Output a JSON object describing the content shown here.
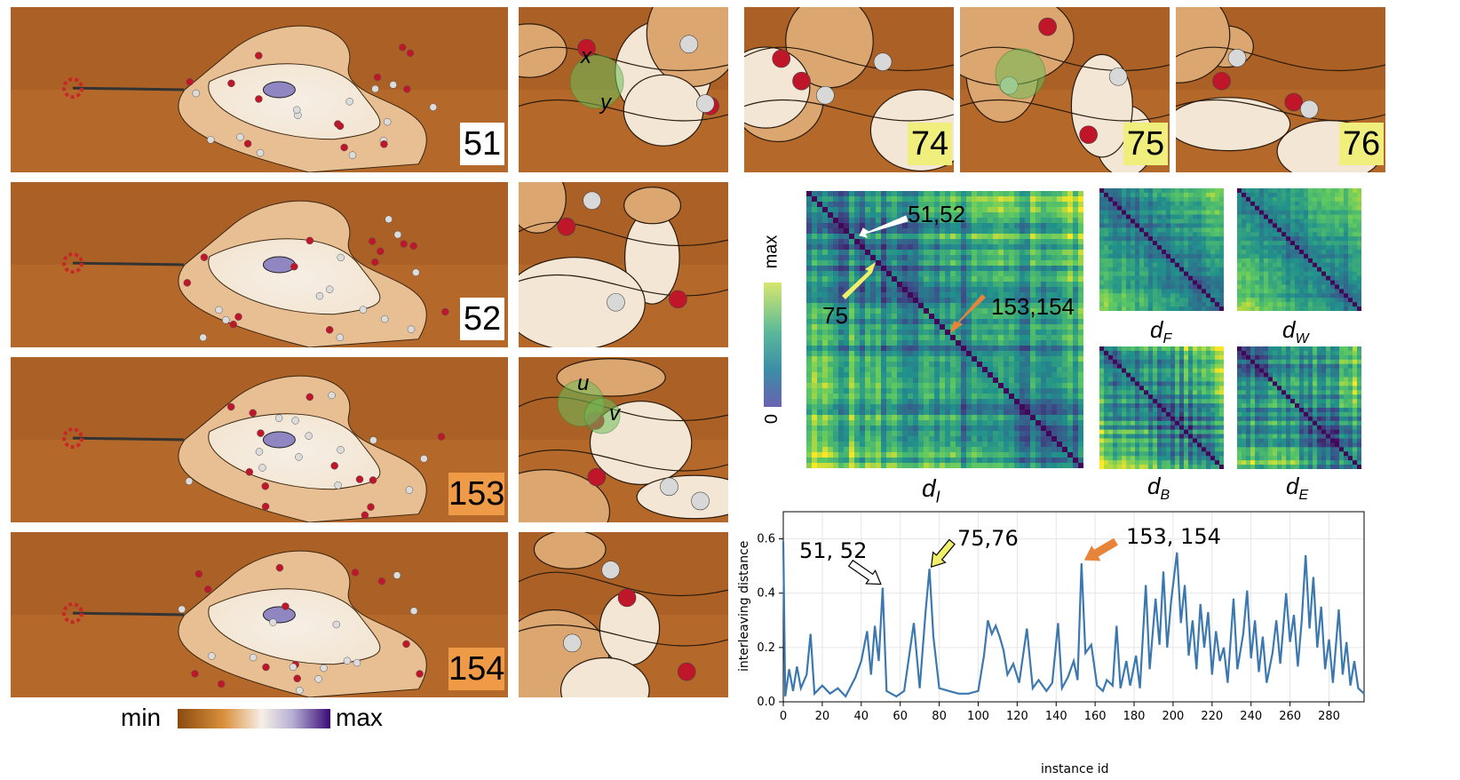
{
  "colormap": {
    "min_label": "min",
    "max_label": "max",
    "stops": [
      "#8b4a0f",
      "#d98f3b",
      "#f6efe6",
      "#b7b1d4",
      "#3a0b76"
    ]
  },
  "frames": [
    {
      "id": "51",
      "style": "white",
      "greek": [
        "x",
        "y"
      ]
    },
    {
      "id": "52",
      "style": "white",
      "greek": []
    },
    {
      "id": "153",
      "style": "orange",
      "greek": [
        "u",
        "v"
      ]
    },
    {
      "id": "154",
      "style": "orange",
      "greek": []
    }
  ],
  "top_frames": [
    {
      "id": "74"
    },
    {
      "id": "75"
    },
    {
      "id": "76"
    }
  ],
  "matrices": {
    "main": {
      "label": "d_I",
      "ann_51": "51,52",
      "ann_75": "75",
      "ann_153": "153,154",
      "cbar_max": "max",
      "cbar_min": "0"
    },
    "small": [
      {
        "label": "d_F"
      },
      {
        "label": "d_W"
      },
      {
        "label": "d_B"
      },
      {
        "label": "d_E"
      }
    ]
  },
  "colors": {
    "line": "#3b78b0",
    "arrow_white": "#ffffff",
    "arrow_yellow": "#f0ef6a",
    "arrow_orange": "#e8833a",
    "viridis": [
      "#440154",
      "#3b528b",
      "#21918c",
      "#5ec962",
      "#fde725"
    ]
  },
  "chart_data": {
    "type": "line",
    "xlabel": "instance id",
    "ylabel": "interleaving distance",
    "xlim": [
      0,
      298
    ],
    "ylim": [
      0,
      0.7
    ],
    "xticks": [
      0,
      20,
      40,
      60,
      80,
      100,
      120,
      140,
      160,
      180,
      200,
      220,
      240,
      260,
      280
    ],
    "yticks": [
      0.0,
      0.2,
      0.4,
      0.6
    ],
    "grid": true,
    "annotations": [
      {
        "text": "51, 52",
        "x": 51,
        "y": 0.42
      },
      {
        "text": "75,76",
        "x": 75,
        "y": 0.49
      },
      {
        "text": "153, 154",
        "x": 153,
        "y": 0.51
      }
    ],
    "peaks": [
      [
        0,
        0.59
      ],
      [
        1,
        0.02
      ],
      [
        3,
        0.12
      ],
      [
        5,
        0.04
      ],
      [
        7,
        0.13
      ],
      [
        9,
        0.05
      ],
      [
        12,
        0.1
      ],
      [
        14,
        0.25
      ],
      [
        16,
        0.03
      ],
      [
        20,
        0.06
      ],
      [
        24,
        0.03
      ],
      [
        28,
        0.05
      ],
      [
        32,
        0.02
      ],
      [
        37,
        0.09
      ],
      [
        40,
        0.15
      ],
      [
        43,
        0.26
      ],
      [
        45,
        0.1
      ],
      [
        47,
        0.28
      ],
      [
        49,
        0.15
      ],
      [
        51,
        0.42
      ],
      [
        53,
        0.04
      ],
      [
        58,
        0.02
      ],
      [
        62,
        0.04
      ],
      [
        67,
        0.29
      ],
      [
        70,
        0.05
      ],
      [
        73,
        0.33
      ],
      [
        75,
        0.49
      ],
      [
        77,
        0.24
      ],
      [
        80,
        0.05
      ],
      [
        85,
        0.04
      ],
      [
        90,
        0.03
      ],
      [
        95,
        0.03
      ],
      [
        100,
        0.04
      ],
      [
        103,
        0.17
      ],
      [
        105,
        0.3
      ],
      [
        107,
        0.25
      ],
      [
        109,
        0.28
      ],
      [
        111,
        0.24
      ],
      [
        113,
        0.19
      ],
      [
        115,
        0.1
      ],
      [
        118,
        0.14
      ],
      [
        121,
        0.07
      ],
      [
        125,
        0.27
      ],
      [
        128,
        0.05
      ],
      [
        131,
        0.08
      ],
      [
        135,
        0.04
      ],
      [
        138,
        0.07
      ],
      [
        141,
        0.29
      ],
      [
        143,
        0.05
      ],
      [
        146,
        0.09
      ],
      [
        149,
        0.15
      ],
      [
        151,
        0.08
      ],
      [
        153,
        0.51
      ],
      [
        155,
        0.18
      ],
      [
        158,
        0.21
      ],
      [
        161,
        0.06
      ],
      [
        164,
        0.04
      ],
      [
        166,
        0.08
      ],
      [
        169,
        0.06
      ],
      [
        171,
        0.28
      ],
      [
        173,
        0.05
      ],
      [
        176,
        0.15
      ],
      [
        178,
        0.06
      ],
      [
        181,
        0.17
      ],
      [
        183,
        0.05
      ],
      [
        186,
        0.43
      ],
      [
        188,
        0.12
      ],
      [
        191,
        0.38
      ],
      [
        193,
        0.21
      ],
      [
        195,
        0.48
      ],
      [
        197,
        0.2
      ],
      [
        199,
        0.37
      ],
      [
        202,
        0.55
      ],
      [
        204,
        0.29
      ],
      [
        206,
        0.43
      ],
      [
        208,
        0.17
      ],
      [
        210,
        0.3
      ],
      [
        212,
        0.12
      ],
      [
        214,
        0.36
      ],
      [
        216,
        0.2
      ],
      [
        218,
        0.33
      ],
      [
        220,
        0.1
      ],
      [
        222,
        0.26
      ],
      [
        224,
        0.15
      ],
      [
        226,
        0.2
      ],
      [
        228,
        0.07
      ],
      [
        231,
        0.38
      ],
      [
        233,
        0.12
      ],
      [
        236,
        0.25
      ],
      [
        238,
        0.41
      ],
      [
        240,
        0.16
      ],
      [
        242,
        0.3
      ],
      [
        244,
        0.11
      ],
      [
        246,
        0.24
      ],
      [
        248,
        0.07
      ],
      [
        251,
        0.18
      ],
      [
        253,
        0.3
      ],
      [
        255,
        0.14
      ],
      [
        258,
        0.4
      ],
      [
        260,
        0.22
      ],
      [
        262,
        0.32
      ],
      [
        264,
        0.13
      ],
      [
        266,
        0.3
      ],
      [
        268,
        0.54
      ],
      [
        270,
        0.27
      ],
      [
        272,
        0.46
      ],
      [
        274,
        0.2
      ],
      [
        276,
        0.35
      ],
      [
        278,
        0.12
      ],
      [
        280,
        0.23
      ],
      [
        282,
        0.07
      ],
      [
        285,
        0.34
      ],
      [
        287,
        0.1
      ],
      [
        289,
        0.22
      ],
      [
        291,
        0.06
      ],
      [
        293,
        0.15
      ],
      [
        295,
        0.05
      ],
      [
        298,
        0.03
      ]
    ]
  }
}
